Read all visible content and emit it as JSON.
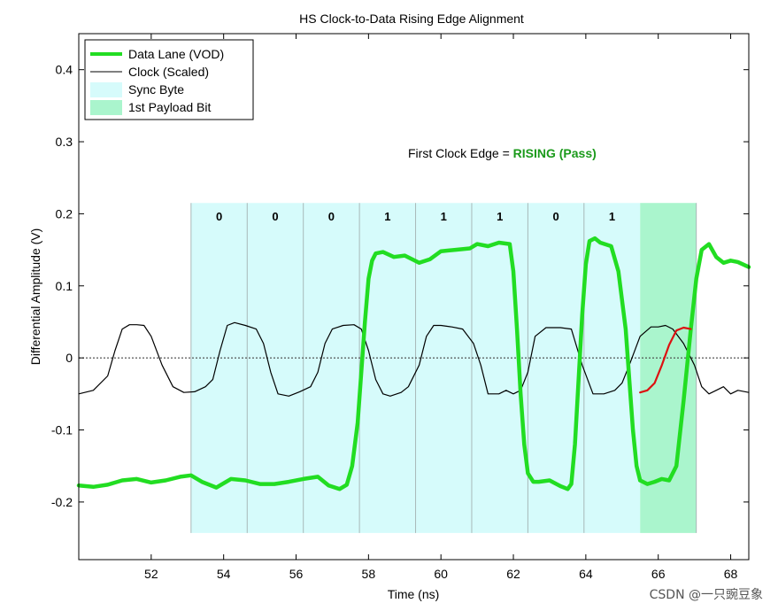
{
  "chart_data": {
    "type": "line",
    "title": "HS Clock-to-Data Rising Edge Alignment",
    "xlabel": "Time (ns)",
    "ylabel": "Differential Amplitude (V)",
    "xlim": [
      50.0,
      68.5
    ],
    "ylim": [
      -0.28,
      0.45
    ],
    "x_ticks": [
      52,
      54,
      56,
      58,
      60,
      62,
      64,
      66,
      68
    ],
    "y_ticks": [
      -0.2,
      -0.1,
      0,
      0.1,
      0.2,
      0.3,
      0.4
    ],
    "y_tick_labels": [
      "-0.2",
      "-0.1",
      "0",
      "0.1",
      "0.2",
      "0.3",
      "0.4"
    ],
    "grid": false,
    "legend_position": "top-left",
    "legend": [
      {
        "label": "Data Lane (VOD)",
        "kind": "line",
        "color": "#22dd22"
      },
      {
        "label": "Clock (Scaled)",
        "kind": "line",
        "color": "#000000"
      },
      {
        "label": "Sync Byte",
        "kind": "patch",
        "color": "#d6fbfb"
      },
      {
        "label": "1st Payload Bit",
        "kind": "patch",
        "color": "#aaf5cd"
      }
    ],
    "sync_byte": {
      "bits": [
        "0",
        "0",
        "0",
        "1",
        "1",
        "1",
        "0",
        "1"
      ],
      "boundaries": [
        53.1,
        54.65,
        56.2,
        57.75,
        59.3,
        60.85,
        62.4,
        63.95,
        65.5
      ]
    },
    "payload_bit": {
      "start": 65.5,
      "end": 67.05
    },
    "zero_line": {
      "y": 0,
      "style": "dotted"
    },
    "annotation": {
      "prefix": "First Clock Edge = ",
      "highlight": "RISING (Pass)",
      "highlight_color": "#1b9a1b"
    },
    "series": [
      {
        "name": "Data Lane (VOD)",
        "color": "#22dd22",
        "x": [
          50.0,
          50.4,
          50.8,
          51.2,
          51.6,
          52.0,
          52.4,
          52.8,
          53.1,
          53.4,
          53.8,
          54.2,
          54.6,
          55.0,
          55.4,
          55.8,
          56.2,
          56.6,
          56.9,
          57.2,
          57.4,
          57.55,
          57.7,
          57.8,
          57.9,
          58.0,
          58.1,
          58.2,
          58.4,
          58.7,
          59.0,
          59.4,
          59.7,
          60.0,
          60.4,
          60.8,
          61.0,
          61.3,
          61.6,
          61.9,
          62.0,
          62.1,
          62.2,
          62.3,
          62.4,
          62.55,
          62.7,
          63.0,
          63.3,
          63.5,
          63.6,
          63.7,
          63.8,
          63.9,
          64.0,
          64.1,
          64.25,
          64.4,
          64.7,
          64.9,
          65.1,
          65.2,
          65.3,
          65.4,
          65.5
        ],
        "y": [
          -0.177,
          -0.179,
          -0.176,
          -0.17,
          -0.168,
          -0.173,
          -0.17,
          -0.165,
          -0.163,
          -0.172,
          -0.18,
          -0.168,
          -0.17,
          -0.175,
          -0.175,
          -0.172,
          -0.168,
          -0.165,
          -0.177,
          -0.182,
          -0.176,
          -0.15,
          -0.09,
          -0.02,
          0.05,
          0.11,
          0.135,
          0.145,
          0.147,
          0.14,
          0.142,
          0.132,
          0.137,
          0.148,
          0.15,
          0.152,
          0.158,
          0.155,
          0.16,
          0.158,
          0.12,
          0.04,
          -0.05,
          -0.12,
          -0.16,
          -0.172,
          -0.172,
          -0.17,
          -0.178,
          -0.182,
          -0.175,
          -0.12,
          -0.03,
          0.06,
          0.13,
          0.162,
          0.166,
          0.16,
          0.155,
          0.12,
          0.04,
          -0.03,
          -0.1,
          -0.15,
          -0.17
        ]
      },
      {
        "name": "Data Lane (VOD) - first payload bit",
        "color": "#22dd22",
        "x": [
          65.5,
          65.7,
          65.9,
          66.1,
          66.3,
          66.5,
          66.7,
          66.9,
          67.05,
          67.2,
          67.4,
          67.6,
          67.8,
          68.0,
          68.2,
          68.5
        ],
        "y": [
          -0.17,
          -0.175,
          -0.172,
          -0.168,
          -0.17,
          -0.15,
          -0.06,
          0.04,
          0.11,
          0.15,
          0.158,
          0.14,
          0.132,
          0.135,
          0.133,
          0.126
        ]
      },
      {
        "name": "Clock (Scaled)",
        "color": "#000000",
        "x": [
          50.0,
          50.4,
          50.8,
          51.0,
          51.2,
          51.4,
          51.6,
          51.8,
          52.0,
          52.3,
          52.6,
          52.9,
          53.2,
          53.5,
          53.7,
          53.9,
          54.1,
          54.3,
          54.6,
          54.9,
          55.1,
          55.3,
          55.5,
          55.8,
          56.1,
          56.4,
          56.6,
          56.8,
          57.0,
          57.3,
          57.6,
          57.8,
          58.0,
          58.2,
          58.4,
          58.6,
          58.9,
          59.1,
          59.4,
          59.6,
          59.8,
          60.0,
          60.3,
          60.6,
          60.9,
          61.1,
          61.3,
          61.6,
          61.8,
          62.0,
          62.2,
          62.4,
          62.6,
          62.9,
          63.1,
          63.3,
          63.6,
          63.9,
          64.2,
          64.5,
          64.8,
          65.0,
          65.2,
          65.5,
          65.8,
          66.0,
          66.2,
          66.4,
          66.7,
          67.0,
          67.2,
          67.4,
          67.6,
          67.8,
          68.0,
          68.2,
          68.5
        ],
        "y": [
          -0.05,
          -0.045,
          -0.025,
          0.01,
          0.04,
          0.046,
          0.046,
          0.045,
          0.03,
          -0.01,
          -0.04,
          -0.048,
          -0.047,
          -0.04,
          -0.03,
          0.01,
          0.045,
          0.049,
          0.045,
          0.04,
          0.02,
          -0.02,
          -0.05,
          -0.053,
          -0.047,
          -0.04,
          -0.02,
          0.02,
          0.04,
          0.045,
          0.046,
          0.04,
          0.01,
          -0.03,
          -0.05,
          -0.053,
          -0.048,
          -0.04,
          -0.01,
          0.03,
          0.045,
          0.045,
          0.043,
          0.04,
          0.02,
          -0.01,
          -0.05,
          -0.05,
          -0.045,
          -0.05,
          -0.045,
          -0.02,
          0.03,
          0.042,
          0.042,
          0.042,
          0.04,
          -0.01,
          -0.05,
          -0.05,
          -0.045,
          -0.035,
          -0.01,
          0.03,
          0.043,
          0.043,
          0.045,
          0.04,
          0.02,
          -0.01,
          -0.04,
          -0.05,
          -0.045,
          -0.04,
          -0.05,
          -0.045,
          -0.048
        ]
      },
      {
        "name": "First Clock Edge",
        "color": "#dd1111",
        "x": [
          65.5,
          65.7,
          65.9,
          66.1,
          66.3,
          66.5,
          66.7,
          66.9
        ],
        "y": [
          -0.048,
          -0.045,
          -0.035,
          -0.01,
          0.018,
          0.038,
          0.042,
          0.04
        ]
      }
    ]
  },
  "watermark": "CSDN @一只豌豆象"
}
